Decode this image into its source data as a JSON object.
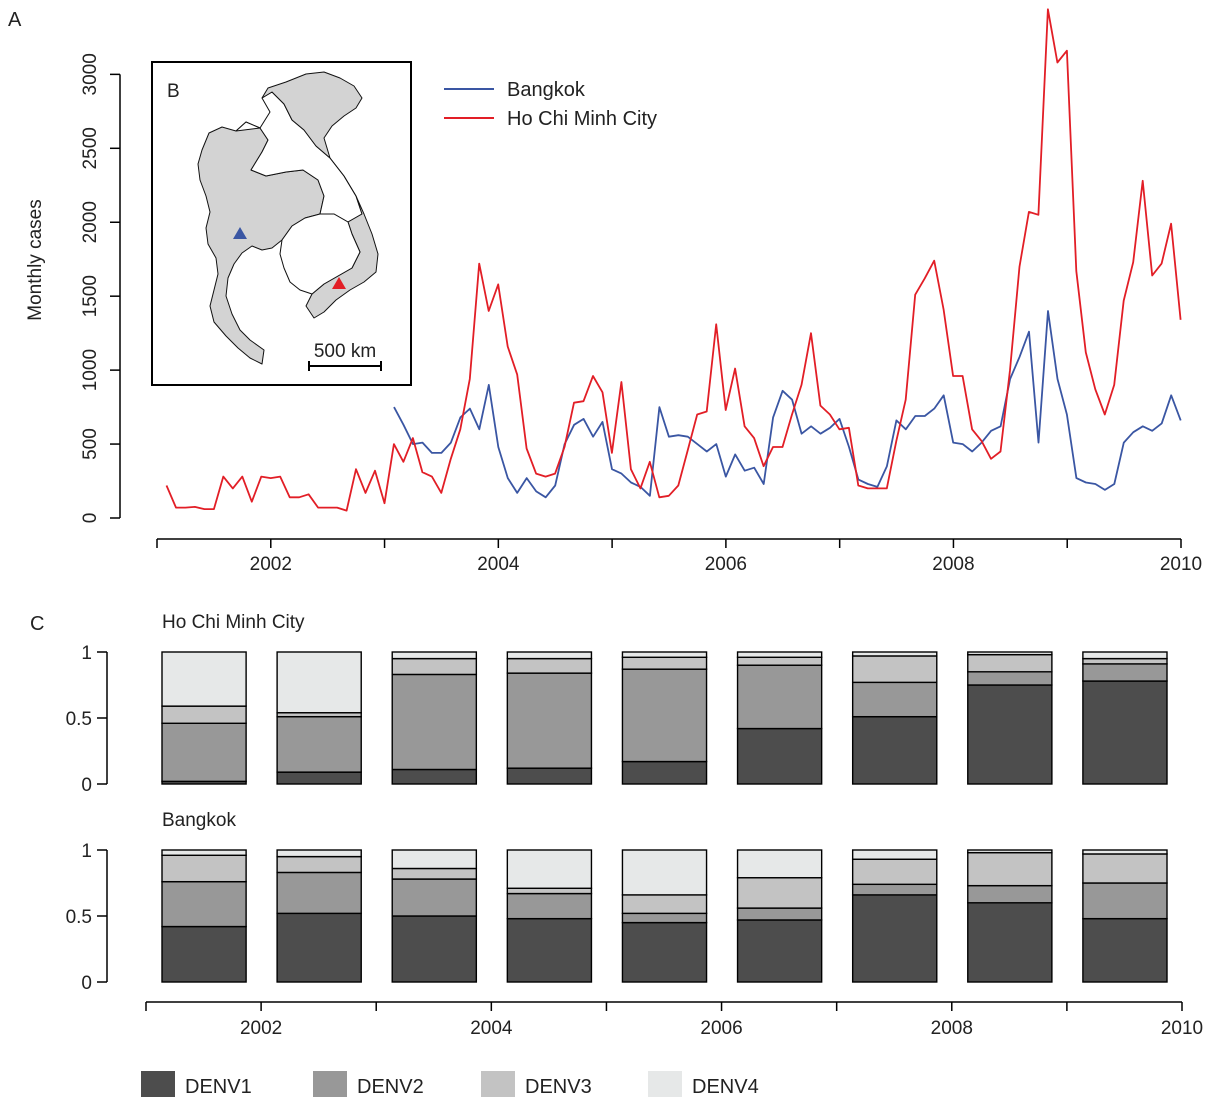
{
  "colors": {
    "bangkok_line": "#3a56a3",
    "hcmc_line": "#e21e26",
    "DENV1": "#4d4d4d",
    "DENV2": "#989898",
    "DENV3": "#c3c3c3",
    "DENV4": "#e6e8e8",
    "bangkok_marker": "#3a56a3",
    "hcmc_marker": "#e21e26",
    "map_land": "#d3d3d3"
  },
  "panel_labels": {
    "a": "A",
    "b": "B",
    "c": "C"
  },
  "inset": {
    "scale_label": "500 km"
  },
  "chart_data": [
    {
      "type": "line",
      "panel": "A",
      "ylabel": "Monthly cases",
      "xlim": [
        2001.0,
        2010.0
      ],
      "ylim": [
        0,
        3300
      ],
      "yticks": [
        0,
        500,
        1000,
        1500,
        2000,
        2500,
        3000
      ],
      "xticks": [
        2002,
        2004,
        2006,
        2008,
        2010
      ],
      "legend": "top-center",
      "series": [
        {
          "name": "Bangkok",
          "x_start": 2003.0833,
          "x_step": 0.0833,
          "values": [
            750,
            630,
            500,
            510,
            440,
            440,
            510,
            680,
            740,
            600,
            900,
            480,
            270,
            170,
            270,
            180,
            140,
            220,
            500,
            630,
            670,
            550,
            650,
            330,
            300,
            240,
            210,
            150,
            750,
            550,
            560,
            550,
            500,
            450,
            500,
            280,
            430,
            320,
            340,
            230,
            680,
            860,
            800,
            570,
            620,
            570,
            610,
            670,
            480,
            260,
            230,
            210,
            350,
            660,
            600,
            690,
            690,
            740,
            830,
            510,
            500,
            450,
            510,
            590,
            620,
            940,
            1090,
            1260,
            510,
            1400,
            940,
            700,
            270,
            240,
            230,
            190,
            230,
            510,
            580,
            620,
            590,
            640,
            830,
            660
          ]
        },
        {
          "name": "Ho Chi Minh City",
          "x_start": 2001.0833,
          "x_step": 0.0833,
          "values": [
            220,
            70,
            70,
            75,
            60,
            60,
            280,
            200,
            280,
            110,
            280,
            270,
            280,
            140,
            140,
            160,
            70,
            70,
            70,
            50,
            330,
            170,
            320,
            100,
            500,
            380,
            540,
            310,
            280,
            170,
            400,
            600,
            940,
            1720,
            1400,
            1580,
            1160,
            970,
            470,
            300,
            280,
            300,
            480,
            780,
            790,
            960,
            850,
            440,
            920,
            330,
            200,
            380,
            140,
            150,
            220,
            460,
            700,
            720,
            1310,
            730,
            1010,
            620,
            540,
            350,
            480,
            480,
            700,
            900,
            1250,
            760,
            700,
            600,
            610,
            220,
            200,
            200,
            200,
            520,
            800,
            1510,
            1620,
            1740,
            1410,
            960,
            960,
            600,
            520,
            400,
            450,
            1000,
            1700,
            2070,
            2050,
            3440,
            3080,
            3160,
            1670,
            1120,
            870,
            700,
            900,
            1470,
            1730,
            2280,
            1640,
            1720,
            1990,
            1340
          ]
        }
      ]
    },
    {
      "type": "bar",
      "panel": "C",
      "title": "Ho Chi Minh City",
      "stacked": true,
      "ylim": [
        0,
        1
      ],
      "yticks": [
        "0",
        "0.5",
        "1"
      ],
      "year_starts": [
        2001,
        2002,
        2003,
        2004,
        2005,
        2006,
        2007,
        2008,
        2009
      ],
      "series": [
        {
          "name": "DENV1",
          "values": [
            0.02,
            0.09,
            0.11,
            0.12,
            0.17,
            0.42,
            0.51,
            0.75,
            0.78
          ]
        },
        {
          "name": "DENV2",
          "values": [
            0.44,
            0.42,
            0.72,
            0.72,
            0.7,
            0.48,
            0.26,
            0.1,
            0.13
          ]
        },
        {
          "name": "DENV3",
          "values": [
            0.13,
            0.03,
            0.12,
            0.11,
            0.09,
            0.06,
            0.2,
            0.13,
            0.04
          ]
        },
        {
          "name": "DENV4",
          "values": [
            0.41,
            0.46,
            0.05,
            0.05,
            0.04,
            0.04,
            0.03,
            0.02,
            0.05
          ]
        }
      ]
    },
    {
      "type": "bar",
      "panel": "C",
      "title": "Bangkok",
      "stacked": true,
      "ylim": [
        0,
        1
      ],
      "yticks": [
        "0",
        "0.5",
        "1"
      ],
      "year_starts": [
        2001,
        2002,
        2003,
        2004,
        2005,
        2006,
        2007,
        2008,
        2009
      ],
      "xticks": [
        2002,
        2004,
        2006,
        2008,
        2010
      ],
      "series": [
        {
          "name": "DENV1",
          "values": [
            0.42,
            0.52,
            0.5,
            0.48,
            0.45,
            0.47,
            0.66,
            0.6,
            0.48
          ]
        },
        {
          "name": "DENV2",
          "values": [
            0.34,
            0.31,
            0.28,
            0.19,
            0.07,
            0.09,
            0.08,
            0.13,
            0.27
          ]
        },
        {
          "name": "DENV3",
          "values": [
            0.2,
            0.12,
            0.08,
            0.04,
            0.14,
            0.23,
            0.19,
            0.25,
            0.22
          ]
        },
        {
          "name": "DENV4",
          "values": [
            0.04,
            0.05,
            0.14,
            0.29,
            0.34,
            0.21,
            0.07,
            0.02,
            0.03
          ]
        }
      ]
    }
  ]
}
